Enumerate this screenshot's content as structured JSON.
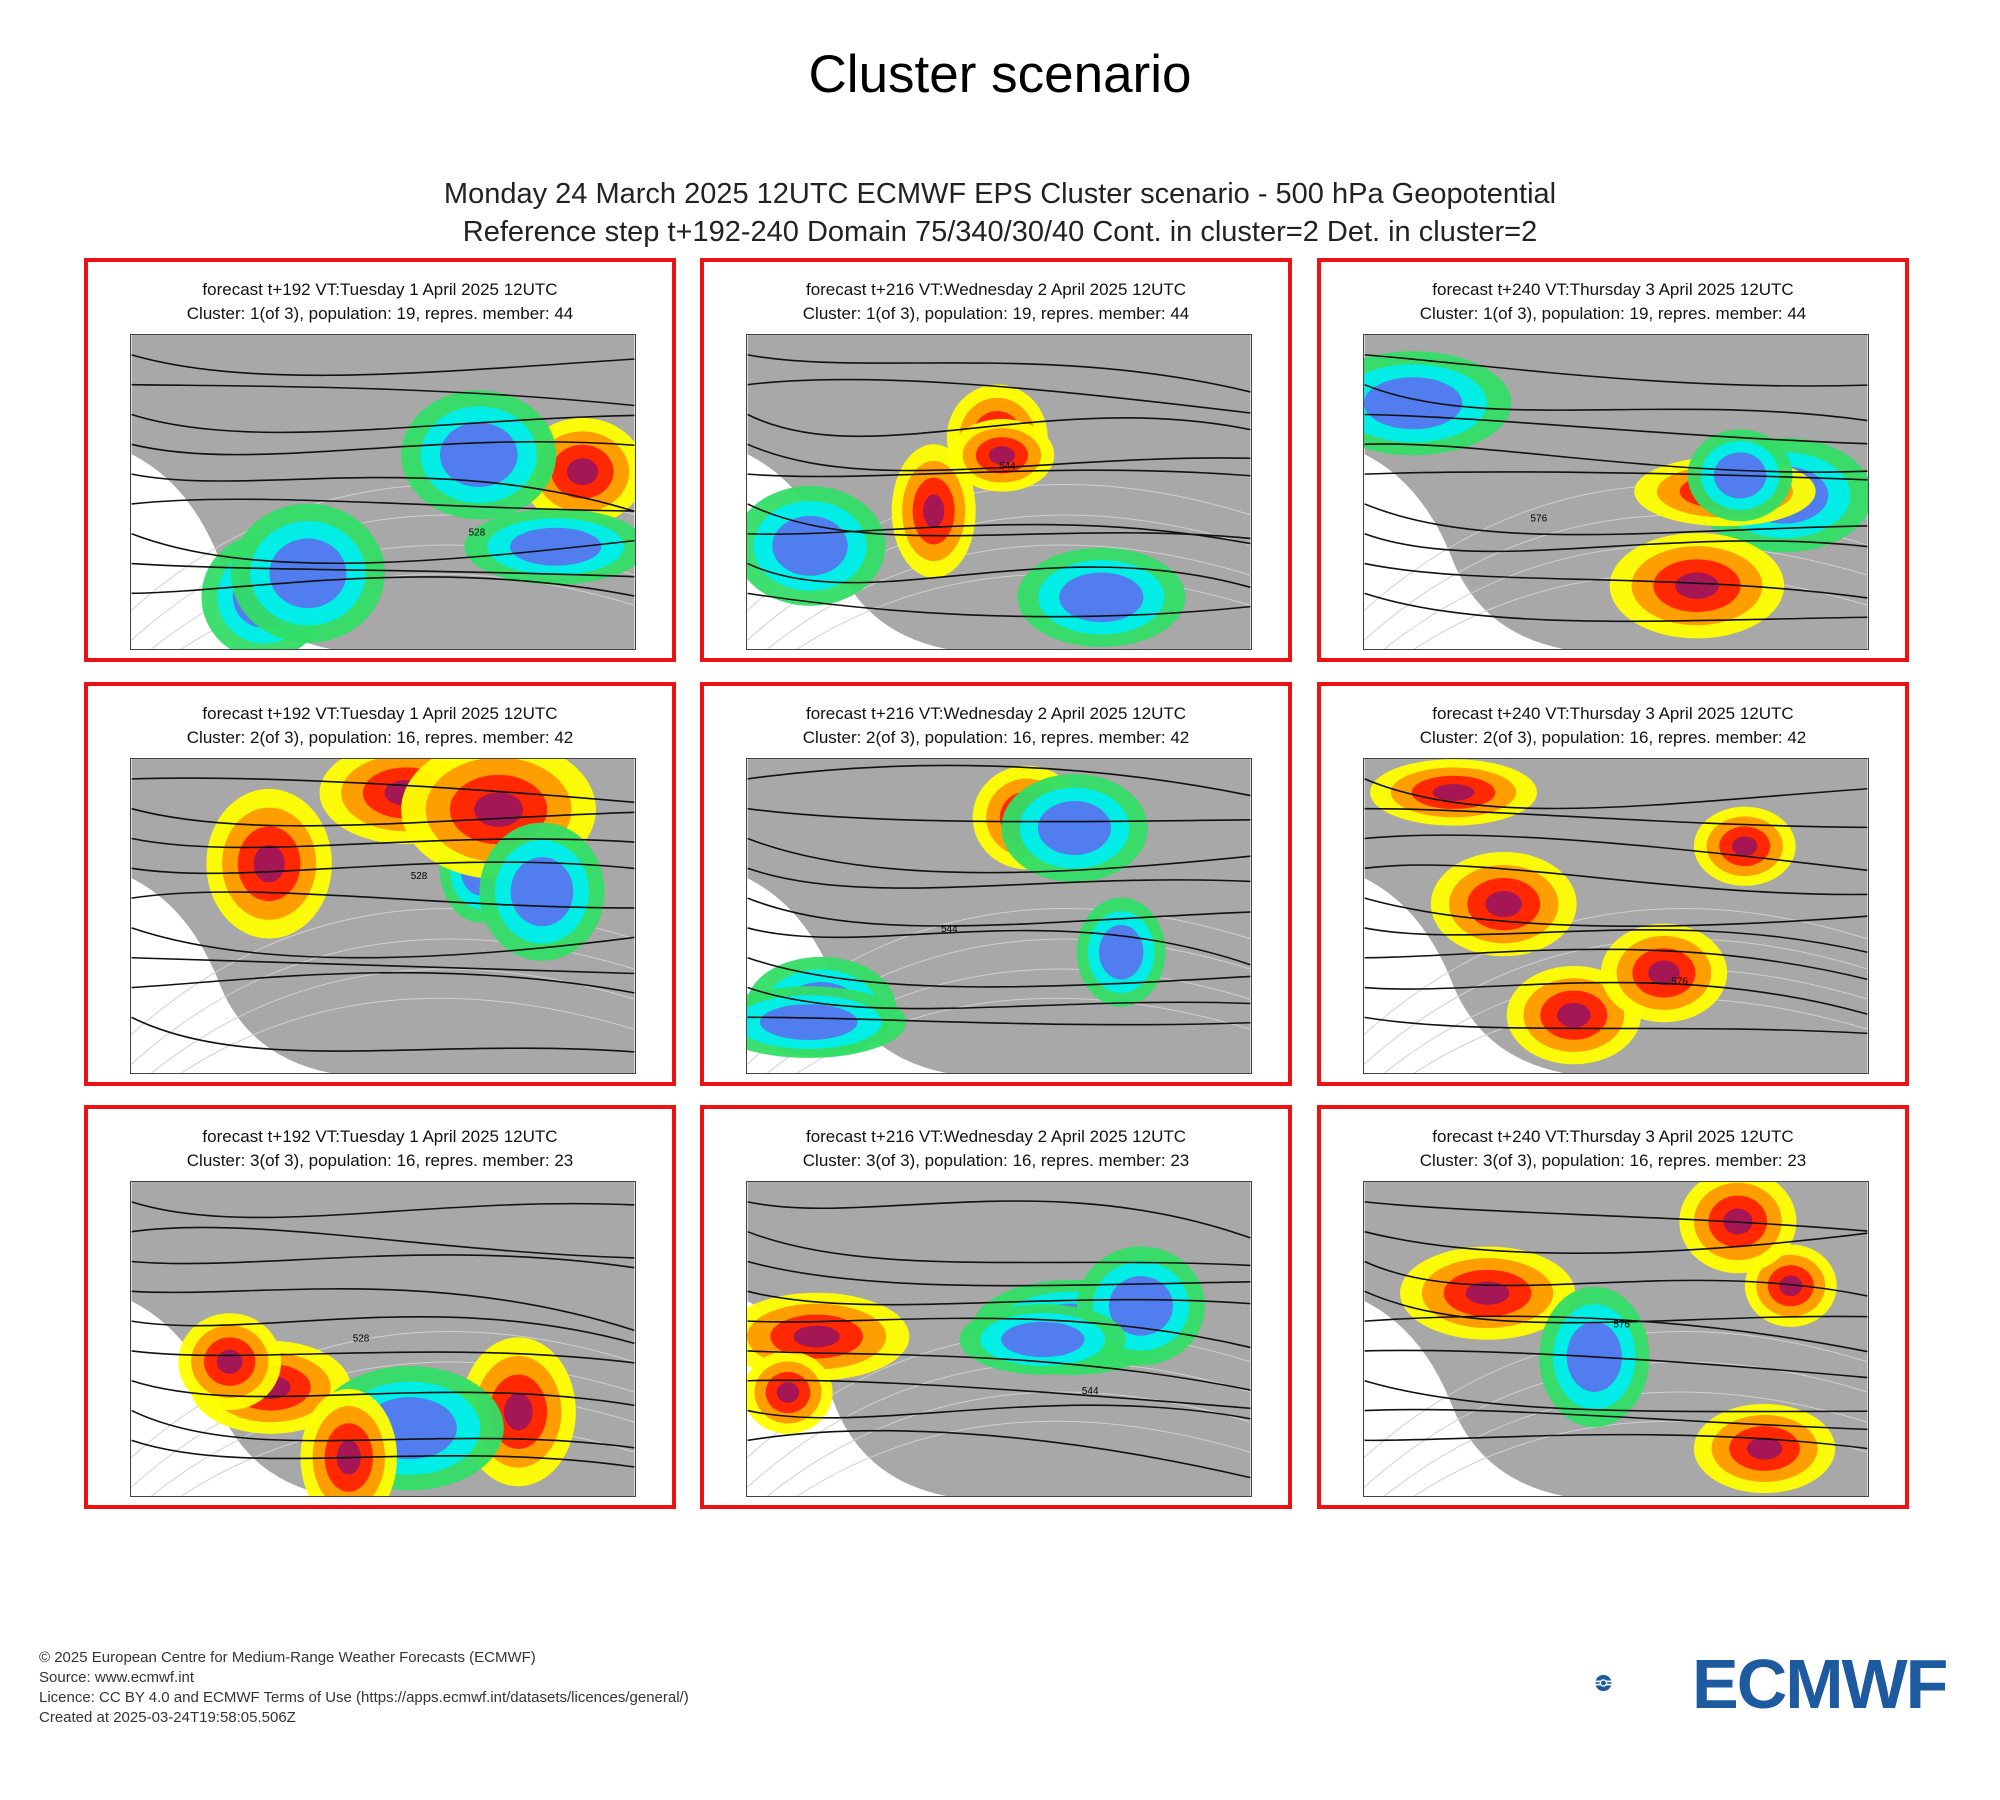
{
  "page": {
    "title": "Cluster scenario",
    "header_line1": "Monday 24 March 2025 12UTC ECMWF EPS Cluster scenario - 500 hPa Geopotential",
    "header_line2": "Reference step t+192-240 Domain 75/340/30/40 Cont. in cluster=2 Det. in cluster=2"
  },
  "panels": [
    {
      "title": "forecast t+192 VT:Tuesday 1 April 2025 12UTC",
      "cluster": "Cluster: 1(of 3), population: 19, repres. member: 44"
    },
    {
      "title": "forecast t+216 VT:Wednesday 2 April 2025 12UTC",
      "cluster": "Cluster: 1(of 3), population: 19, repres. member: 44"
    },
    {
      "title": "forecast t+240 VT:Thursday 3 April 2025 12UTC",
      "cluster": "Cluster: 1(of 3), population: 19, repres. member: 44"
    },
    {
      "title": "forecast t+192 VT:Tuesday 1 April 2025 12UTC",
      "cluster": "Cluster: 2(of 3), population: 16, repres. member: 42"
    },
    {
      "title": "forecast t+216 VT:Wednesday 2 April 2025 12UTC",
      "cluster": "Cluster: 2(of 3), population: 16, repres. member: 42"
    },
    {
      "title": "forecast t+240 VT:Thursday 3 April 2025 12UTC",
      "cluster": "Cluster: 2(of 3), population: 16, repres. member: 42"
    },
    {
      "title": "forecast t+192 VT:Tuesday 1 April 2025 12UTC",
      "cluster": "Cluster: 3(of 3), population: 16, repres. member: 23"
    },
    {
      "title": "forecast t+216 VT:Wednesday 2 April 2025 12UTC",
      "cluster": "Cluster: 3(of 3), population: 16, repres. member: 23"
    },
    {
      "title": "forecast t+240 VT:Thursday 3 April 2025 12UTC",
      "cluster": "Cluster: 3(of 3), population: 16, repres. member: 23"
    }
  ],
  "contour_labels": [
    "528",
    "544",
    "576"
  ],
  "colors": {
    "panel_border": "#ee1111",
    "land_gray": "#a8a8a8",
    "anomaly_positive": [
      "#ffff00",
      "#ff9900",
      "#ff2200",
      "#a0155a"
    ],
    "anomaly_negative": [
      "#33dd66",
      "#00eeee",
      "#5577ee"
    ],
    "brand": "#1d5aa0"
  },
  "footer": {
    "copyright": "© 2025 European Centre for Medium-Range Weather Forecasts (ECMWF)",
    "source": "Source: www.ecmwf.int",
    "licence": "Licence: CC BY 4.0 and ECMWF Terms of Use (https://apps.ecmwf.int/datasets/licences/general/)",
    "created": "Created at 2025-03-24T19:58:05.506Z"
  },
  "logo": {
    "text": "ECMWF",
    "icon": "ecmwf-logo-icon"
  }
}
